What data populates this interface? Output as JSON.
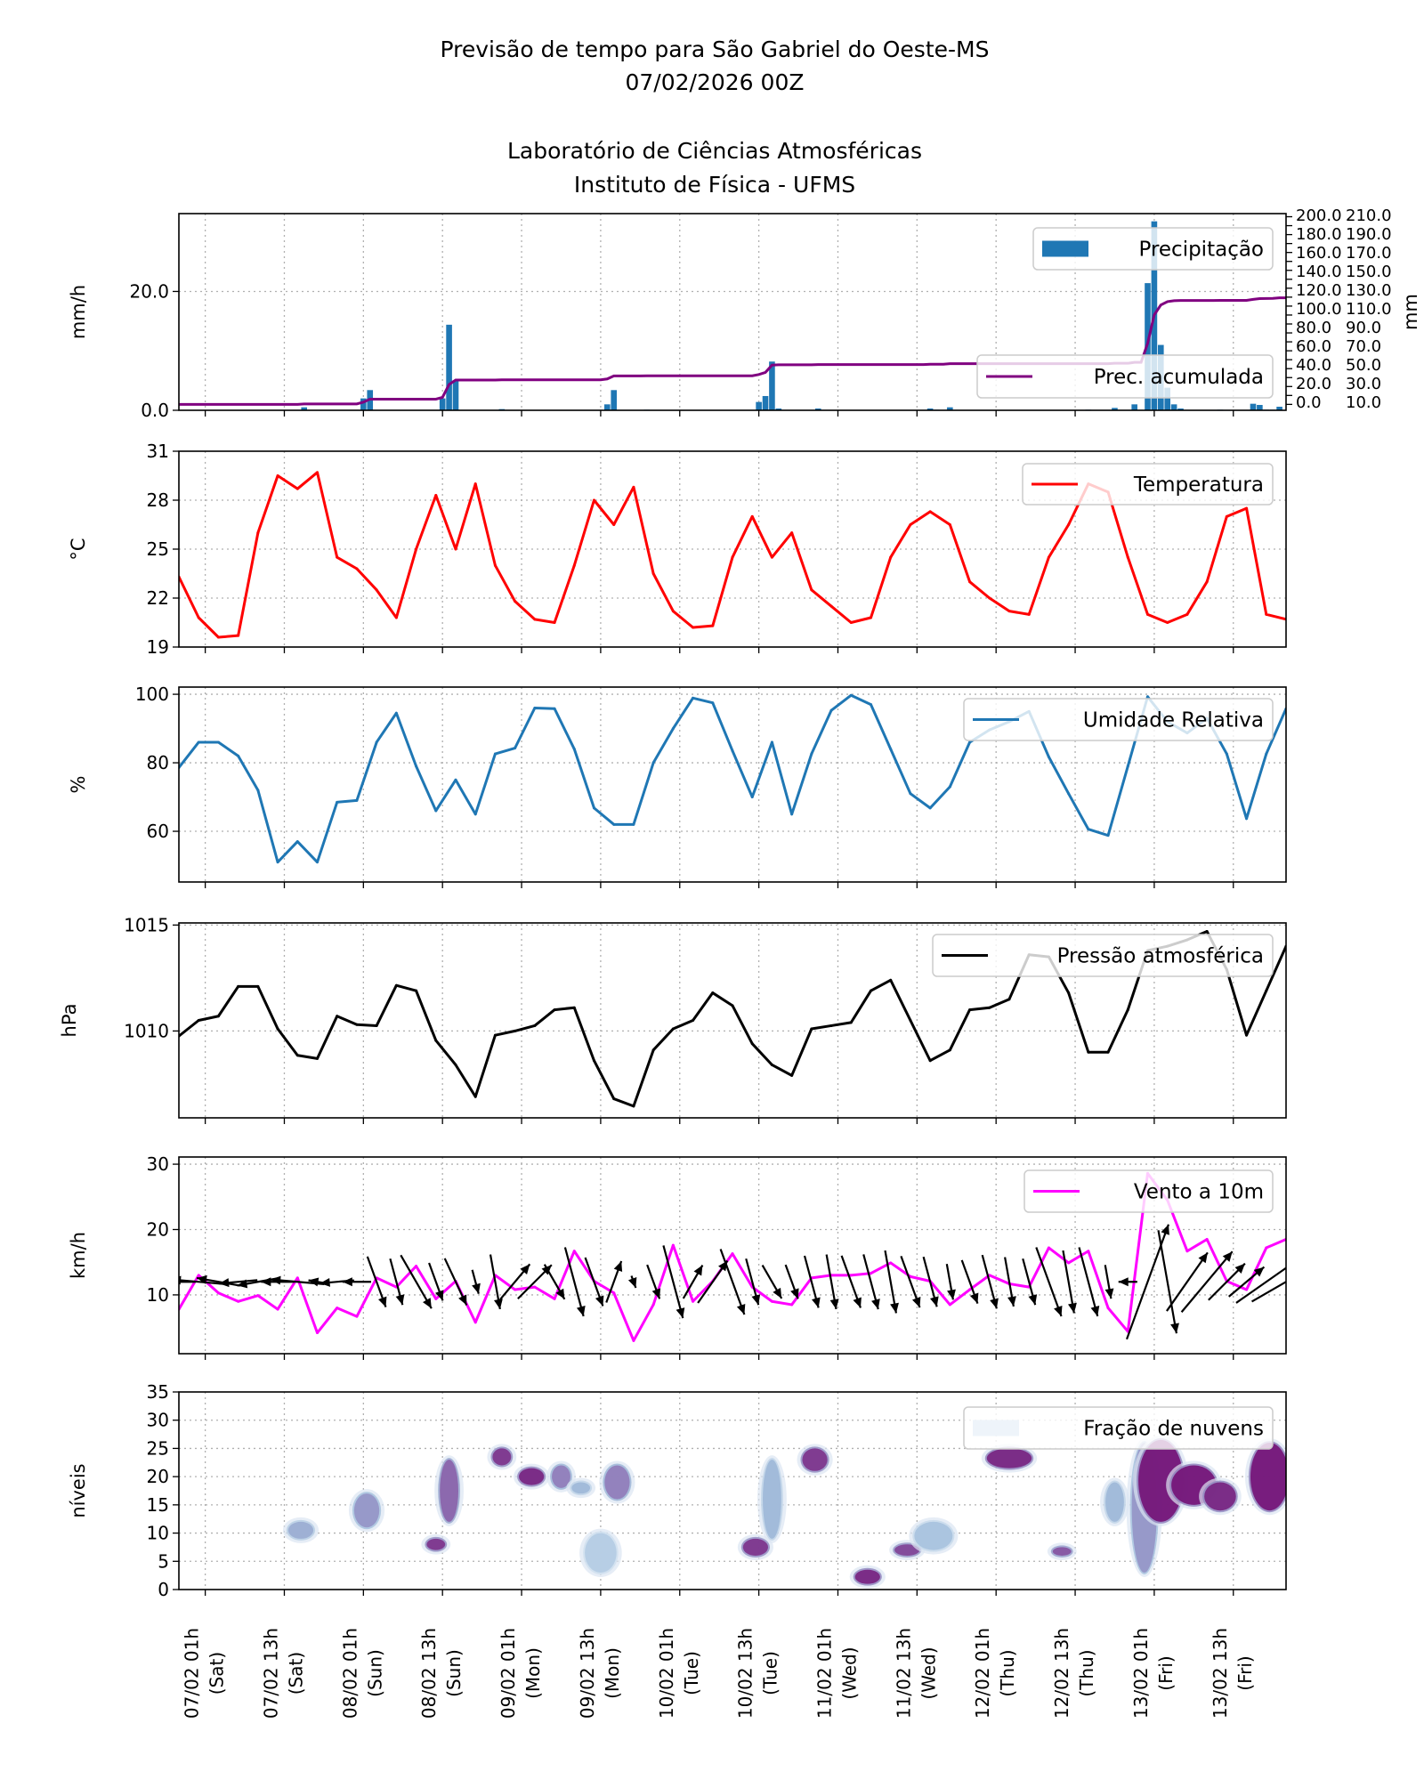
{
  "header": {
    "title_line1": "Previsão de tempo para São Gabriel do Oeste-MS",
    "title_line2": "07/02/2026 00Z",
    "title_line3": "Laboratório de Ciências Atmosféricas",
    "title_line4": "Instituto de Física - UFMS"
  },
  "time_axis": {
    "x": [
      "06/02 21h",
      "07/02 00h",
      "07/02 03h",
      "07/02 06h",
      "07/02 09h",
      "07/02 12h",
      "07/02 15h",
      "07/02 18h",
      "07/02 21h",
      "08/02 00h",
      "08/02 03h",
      "08/02 06h",
      "08/02 09h",
      "08/02 12h",
      "08/02 15h",
      "08/02 18h",
      "08/02 21h",
      "09/02 00h",
      "09/02 03h",
      "09/02 06h",
      "09/02 09h",
      "09/02 12h",
      "09/02 15h",
      "09/02 18h",
      "09/02 21h",
      "10/02 00h",
      "10/02 03h",
      "10/02 06h",
      "10/02 09h",
      "10/02 12h",
      "10/02 15h",
      "10/02 18h",
      "10/02 21h",
      "11/02 00h",
      "11/02 03h",
      "11/02 06h",
      "11/02 09h",
      "11/02 12h",
      "11/02 15h",
      "11/02 18h",
      "11/02 21h",
      "12/02 00h",
      "12/02 03h",
      "12/02 06h",
      "12/02 09h",
      "12/02 12h",
      "12/02 15h",
      "12/02 18h",
      "12/02 21h",
      "13/02 00h",
      "13/02 03h",
      "13/02 06h",
      "13/02 09h",
      "13/02 12h",
      "13/02 15h",
      "13/02 18h",
      "13/02 21h"
    ],
    "ticks": [
      {
        "date": "07/02 01h",
        "day": "(Sat)"
      },
      {
        "date": "07/02 13h",
        "day": "(Sat)"
      },
      {
        "date": "08/02 01h",
        "day": "(Sun)"
      },
      {
        "date": "08/02 13h",
        "day": "(Sun)"
      },
      {
        "date": "09/02 01h",
        "day": "(Mon)"
      },
      {
        "date": "09/02 13h",
        "day": "(Mon)"
      },
      {
        "date": "10/02 01h",
        "day": "(Tue)"
      },
      {
        "date": "10/02 13h",
        "day": "(Tue)"
      },
      {
        "date": "11/02 01h",
        "day": "(Wed)"
      },
      {
        "date": "11/02 13h",
        "day": "(Wed)"
      },
      {
        "date": "12/02 01h",
        "day": "(Thu)"
      },
      {
        "date": "12/02 13h",
        "day": "(Thu)"
      },
      {
        "date": "13/02 01h",
        "day": "(Fri)"
      },
      {
        "date": "13/02 13h",
        "day": "(Fri)"
      }
    ],
    "grid": true
  },
  "chart_data": [
    {
      "type": "bar",
      "ylabel": "mm/h",
      "ylabel_right": "mm",
      "ylim": [
        0,
        33.1
      ],
      "yticks": [
        0,
        20
      ],
      "ytick_labels": [
        "0.0",
        "20.0"
      ],
      "ylim_right": [
        -6.6,
        213.5
      ],
      "yticks_right": [
        0,
        10,
        20,
        30,
        40,
        50,
        60,
        70,
        80,
        90,
        100,
        110,
        120,
        130,
        140,
        150,
        160,
        170,
        180,
        190,
        200,
        210
      ],
      "ytick_labels_right": [
        "0.0",
        "10.0",
        "20.0",
        "30.0",
        "40.0",
        "50.0",
        "60.0",
        "70.0",
        "80.0",
        "90.0",
        "100.0",
        "110.0",
        "120.0",
        "130.0",
        "140.0",
        "150.0",
        "160.0",
        "170.0",
        "180.0",
        "190.0",
        "200.0",
        "210.0"
      ],
      "grid_y": [
        20
      ],
      "series": [
        {
          "name": "Precipitação",
          "kind": "bar",
          "color": "#1f77b4",
          "points": [
            [
              "07/02 16h",
              0.5
            ],
            [
              "08/02 01h",
              2.0
            ],
            [
              "08/02 02h",
              3.4
            ],
            [
              "08/02 13h",
              2.0
            ],
            [
              "08/02 14h",
              14.4
            ],
            [
              "08/02 15h",
              5.0
            ],
            [
              "08/02 22h",
              0.2
            ],
            [
              "09/02 14h",
              1.0
            ],
            [
              "09/02 15h",
              3.4
            ],
            [
              "09/02 20h",
              0.1
            ],
            [
              "10/02 13h",
              1.4
            ],
            [
              "10/02 14h",
              2.4
            ],
            [
              "10/02 15h",
              8.2
            ],
            [
              "10/02 16h",
              0.3
            ],
            [
              "10/02 22h",
              0.3
            ],
            [
              "11/02 15h",
              0.3
            ],
            [
              "11/02 16h",
              0.1
            ],
            [
              "11/02 18h",
              0.5
            ],
            [
              "12/02 15h",
              0.1
            ],
            [
              "12/02 19h",
              0.4
            ],
            [
              "12/02 22h",
              1.0
            ],
            [
              "13/02 00h",
              21.4
            ],
            [
              "13/02 01h",
              31.8
            ],
            [
              "13/02 02h",
              11.0
            ],
            [
              "13/02 03h",
              3.8
            ],
            [
              "13/02 04h",
              1.0
            ],
            [
              "13/02 05h",
              0.3
            ],
            [
              "13/02 11h",
              0.1
            ],
            [
              "13/02 16h",
              1.1
            ],
            [
              "13/02 17h",
              0.9
            ],
            [
              "13/02 18h",
              0.1
            ],
            [
              "13/02 19h",
              0.1
            ],
            [
              "13/02 20h",
              0.6
            ]
          ]
        },
        {
          "name": "Prec. acumulada",
          "kind": "cumulative-line",
          "axis": "right",
          "color": "#800080"
        }
      ]
    },
    {
      "type": "line",
      "ylabel": "$^\\circ$C",
      "ylabel_display": "°C",
      "ylim": [
        19,
        31
      ],
      "yticks": [
        19,
        22,
        25,
        28,
        31
      ],
      "ytick_labels": [
        "19",
        "22",
        "25",
        "28",
        "31"
      ],
      "grid_y": [
        22,
        25,
        28
      ],
      "series": [
        {
          "name": "Temperatura",
          "color": "#ff0000",
          "values": [
            23.3,
            20.8,
            19.6,
            19.7,
            26,
            29.5,
            28.7,
            29.7,
            24.5,
            23.8,
            22.5,
            20.8,
            25,
            28.3,
            25,
            29,
            24,
            21.8,
            20.7,
            20.5,
            24,
            28,
            26.5,
            28.8,
            23.5,
            21.2,
            20.2,
            20.3,
            24.5,
            27,
            24.5,
            26,
            22.5,
            21.5,
            20.5,
            20.8,
            24.5,
            26.5,
            27.3,
            26.5,
            23,
            22,
            21.2,
            21,
            24.5,
            26.5,
            29,
            28.5,
            24.5,
            21,
            20.5,
            21,
            23,
            27,
            27.5,
            21,
            20.7
          ]
        }
      ]
    },
    {
      "type": "line",
      "ylabel": "%",
      "ylim": [
        45.2,
        102.1
      ],
      "yticks": [
        60,
        80,
        100
      ],
      "ytick_labels": [
        "60",
        "80",
        "100"
      ],
      "grid_y": [
        60,
        80,
        100
      ],
      "series": [
        {
          "name": "Umidade Relativa",
          "color": "#1f77b4",
          "values": [
            78.6,
            86,
            86,
            82,
            72,
            51,
            57,
            51,
            68.5,
            69,
            86,
            94.5,
            79,
            66,
            75,
            65,
            82.6,
            84.3,
            96,
            95.8,
            84,
            66.8,
            62,
            62,
            80,
            90,
            98.9,
            97.5,
            83.5,
            70,
            86,
            65,
            82.6,
            95.3,
            99.7,
            97,
            84,
            71,
            66.8,
            73,
            86,
            89.6,
            92,
            95,
            81.7,
            71,
            60.6,
            58.8,
            79,
            99.3,
            92,
            88.7,
            93,
            82.6,
            63.7,
            82.6,
            95.8
          ]
        }
      ]
    },
    {
      "type": "line",
      "ylabel": "hPa",
      "ylim": [
        1005.9,
        1015.1
      ],
      "yticks": [
        1010,
        1015
      ],
      "ytick_labels": [
        "1010",
        "1015"
      ],
      "grid_y": [
        1010,
        1015
      ],
      "series": [
        {
          "name": "Pressão atmosférica",
          "color": "#000000",
          "values": [
            1009.76,
            1010.5,
            1010.7,
            1012.1,
            1012.1,
            1010.1,
            1008.85,
            1008.7,
            1010.7,
            1010.3,
            1010.25,
            1012.15,
            1011.9,
            1009.55,
            1008.4,
            1006.9,
            1009.8,
            1010,
            1010.25,
            1011,
            1011.1,
            1008.6,
            1006.8,
            1006.45,
            1009.1,
            1010.1,
            1010.5,
            1011.8,
            1011.2,
            1009.4,
            1008.4,
            1007.9,
            1010.1,
            1010.25,
            1010.4,
            1011.9,
            1012.4,
            1010.5,
            1008.6,
            1009.1,
            1011,
            1011.1,
            1011.5,
            1013.6,
            1013.5,
            1011.8,
            1009,
            1009,
            1011,
            1013.8,
            1014,
            1014.3,
            1014.7,
            1012.9,
            1009.8,
            1011.9,
            1014
          ]
        }
      ]
    },
    {
      "type": "line",
      "ylabel": "km/h",
      "ylim": [
        1.0,
        31.1
      ],
      "yticks": [
        10,
        20,
        30
      ],
      "ytick_labels": [
        "10",
        "20",
        "30"
      ],
      "grid_y": [
        10,
        20,
        30
      ],
      "series": [
        {
          "name": "Vento a 10m",
          "color": "#ff00ff",
          "values": [
            7.8,
            13,
            10.3,
            9,
            9.9,
            7.8,
            12.6,
            4.2,
            8,
            6.7,
            12.6,
            11.2,
            14.4,
            9.4,
            12.1,
            5.8,
            13,
            10.8,
            11.2,
            9.4,
            16.7,
            12.1,
            10.3,
            3,
            8.5,
            17.6,
            9,
            12.1,
            16.3,
            11.2,
            9,
            8.5,
            12.6,
            13,
            13,
            13.3,
            14.9,
            12.8,
            12.1,
            8.5,
            10.8,
            13,
            11.7,
            11.2,
            17.2,
            14.9,
            16.7,
            8,
            4.4,
            28.6,
            24.5,
            16.7,
            18.5,
            12.1,
            10.8,
            17.2,
            18.5
          ]
        },
        {
          "kind": "quiver",
          "color": "#000000",
          "direction_deg_from": [
            90,
            95,
            100,
            85,
            80,
            90,
            95,
            100,
            85,
            90,
            340,
            345,
            330,
            340,
            335,
            345,
            350,
            220,
            225,
            330,
            345,
            340,
            200,
            340,
            340,
            345,
            210,
            215,
            340,
            345,
            330,
            340,
            345,
            350,
            340,
            345,
            350,
            340,
            345,
            350,
            340,
            345,
            350,
            345,
            340,
            350,
            345,
            350,
            90,
            200,
            350,
            215,
            220,
            225,
            230,
            235,
            240
          ]
        }
      ]
    },
    {
      "type": "heatmap",
      "ylabel": "níveis",
      "ylim": [
        0,
        35
      ],
      "yticks": [
        0,
        5,
        10,
        15,
        20,
        25,
        30,
        35
      ],
      "ytick_labels": [
        "0",
        "5",
        "10",
        "15",
        "20",
        "25",
        "30",
        "35"
      ],
      "grid_y": [
        5,
        10,
        15,
        20,
        25,
        30
      ],
      "colormap": [
        "#f7fbff",
        "#9ebcda",
        "#8c6bb1",
        "#6e016b"
      ],
      "series": [
        {
          "name": "Fração de nuvens",
          "legend_color": "#eef4fa",
          "regions": [
            {
              "t": [
                "07/02 14h",
                "07/02 17h"
              ],
              "lev": [
                9,
                12
              ],
              "frac": 0.4
            },
            {
              "t": [
                "08/02 00h",
                "08/02 03h"
              ],
              "lev": [
                11,
                17
              ],
              "frac": 0.5
            },
            {
              "t": [
                "08/02 13h",
                "08/02 15h"
              ],
              "lev": [
                12,
                23
              ],
              "frac": 0.7
            },
            {
              "t": [
                "08/02 11h",
                "08/02 13h"
              ],
              "lev": [
                7,
                9
              ],
              "frac": 0.85
            },
            {
              "t": [
                "08/02 21h",
                "08/02 23h"
              ],
              "lev": [
                22,
                25
              ],
              "frac": 0.85
            },
            {
              "t": [
                "09/02 01h",
                "09/02 04h"
              ],
              "lev": [
                18.5,
                21.5
              ],
              "frac": 0.9
            },
            {
              "t": [
                "09/02 06h",
                "09/02 08h"
              ],
              "lev": [
                18,
                22
              ],
              "frac": 0.6
            },
            {
              "t": [
                "09/02 09h",
                "09/02 11h"
              ],
              "lev": [
                17,
                19
              ],
              "frac": 0.35
            },
            {
              "t": [
                "09/02 14h",
                "09/02 17h"
              ],
              "lev": [
                16,
                22
              ],
              "frac": 0.6
            },
            {
              "t": [
                "09/02 11h",
                "09/02 15h"
              ],
              "lev": [
                3,
                10
              ],
              "frac": 0.25
            },
            {
              "t": [
                "10/02 11h",
                "10/02 14h"
              ],
              "lev": [
                6,
                9
              ],
              "frac": 0.85
            },
            {
              "t": [
                "10/02 14h",
                "10/02 16h"
              ],
              "lev": [
                9,
                23
              ],
              "frac": 0.35
            },
            {
              "t": [
                "10/02 20h",
                "10/02 23h"
              ],
              "lev": [
                21,
                25
              ],
              "frac": 0.85
            },
            {
              "t": [
                "11/02 04h",
                "11/02 07h"
              ],
              "lev": [
                1,
                3.5
              ],
              "frac": 0.9
            },
            {
              "t": [
                "11/02 10h",
                "11/02 13h"
              ],
              "lev": [
                6,
                8
              ],
              "frac": 0.8
            },
            {
              "t": [
                "11/02 13h",
                "11/02 18h"
              ],
              "lev": [
                7,
                12
              ],
              "frac": 0.3
            },
            {
              "t": [
                "12/02 00h",
                "12/02 06h"
              ],
              "lev": [
                21.5,
                25
              ],
              "frac": 0.9
            },
            {
              "t": [
                "12/02 10h",
                "12/02 12h"
              ],
              "lev": [
                6,
                7.5
              ],
              "frac": 0.75
            },
            {
              "t": [
                "12/02 18h",
                "12/02 20h"
              ],
              "lev": [
                12,
                19
              ],
              "frac": 0.35
            },
            {
              "t": [
                "12/02 22h",
                "13/02 01h"
              ],
              "lev": [
                3,
                26
              ],
              "frac": 0.5
            },
            {
              "t": [
                "12/02 23h",
                "13/02 05h"
              ],
              "lev": [
                12,
                26.5
              ],
              "frac": 0.95
            },
            {
              "t": [
                "13/02 04h",
                "13/02 10h"
              ],
              "lev": [
                15,
                22
              ],
              "frac": 0.95
            },
            {
              "t": [
                "13/02 09h",
                "13/02 13h"
              ],
              "lev": [
                14,
                19
              ],
              "frac": 0.9
            },
            {
              "t": [
                "13/02 16h",
                "13/02 21h"
              ],
              "lev": [
                14,
                26
              ],
              "frac": 0.95
            }
          ]
        }
      ]
    }
  ]
}
